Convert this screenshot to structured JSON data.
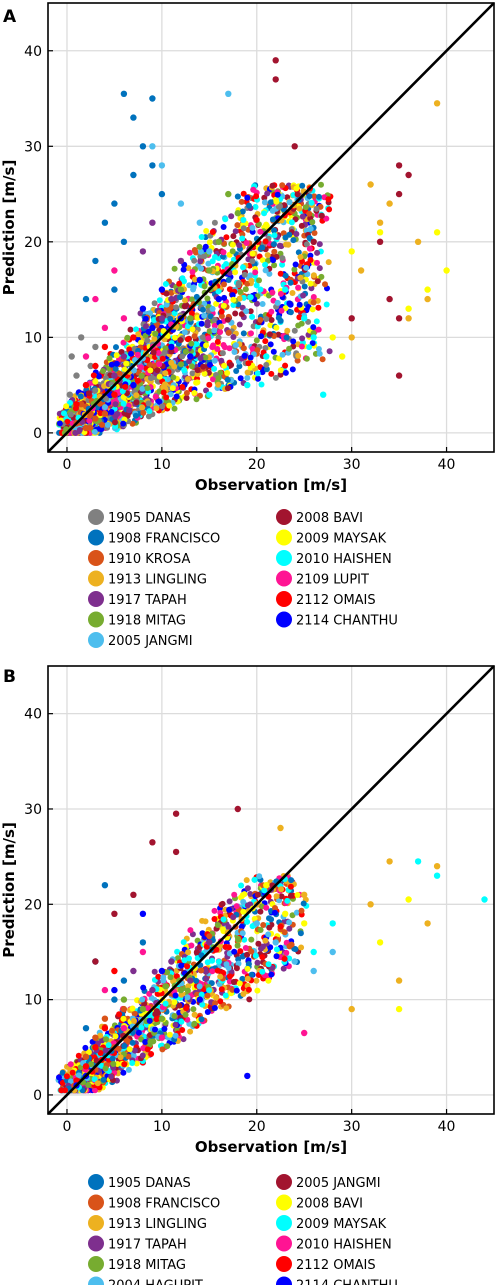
{
  "chart_data": [
    {
      "panel": "A",
      "type": "scatter",
      "xlabel": "Observation [m/s]",
      "ylabel": "Prediction [m/s]",
      "xlim": [
        -2,
        45
      ],
      "ylim": [
        -2,
        45
      ],
      "xticks": [
        "0",
        "10",
        "20",
        "30",
        "40"
      ],
      "yticks": [
        "0",
        "10",
        "20",
        "30",
        "40"
      ],
      "grid": true,
      "reference_line": "y = x",
      "legend_position": "below plot, two columns",
      "series": [
        {
          "name": "1905 DANAS",
          "color": "#808080",
          "points": [
            [
              0.5,
              8
            ],
            [
              1,
              6
            ],
            [
              1.5,
              10
            ],
            [
              2,
              5
            ],
            [
              0.3,
              4
            ],
            [
              3,
              9
            ],
            [
              2.5,
              7
            ]
          ]
        },
        {
          "name": "1908 FRANCISCO",
          "color": "#0072BD",
          "points": [
            [
              6,
              35.5
            ],
            [
              7,
              33
            ],
            [
              8,
              30
            ],
            [
              9,
              28
            ],
            [
              5,
              24
            ],
            [
              4,
              22
            ],
            [
              3,
              18
            ],
            [
              6,
              20
            ],
            [
              2,
              14
            ],
            [
              7,
              27
            ],
            [
              10,
              25
            ],
            [
              9,
              35
            ],
            [
              5,
              15
            ]
          ]
        },
        {
          "name": "1910 KROSA",
          "color": "#D95319",
          "points": [
            [
              1,
              1
            ],
            [
              2,
              0.5
            ],
            [
              3,
              1.5
            ],
            [
              4,
              2
            ],
            [
              1.5,
              3
            ],
            [
              2.5,
              2
            ]
          ]
        },
        {
          "name": "1913 LINGLING",
          "color": "#EDB120",
          "points": [
            [
              32,
              26
            ],
            [
              33,
              22
            ],
            [
              34,
              24
            ],
            [
              37,
              20
            ],
            [
              39,
              34.5
            ],
            [
              38,
              14
            ],
            [
              36,
              12
            ],
            [
              31,
              17
            ],
            [
              30,
              10
            ]
          ]
        },
        {
          "name": "1917 TAPAH",
          "color": "#7E2F8E",
          "points": [
            [
              8,
              19
            ],
            [
              9,
              22
            ],
            [
              10,
              12
            ],
            [
              11,
              14
            ],
            [
              6,
              8
            ],
            [
              5,
              6
            ],
            [
              12,
              18
            ]
          ]
        },
        {
          "name": "1918 MITAG",
          "color": "#77AC30",
          "points": [
            [
              17,
              25
            ],
            [
              16,
              20
            ],
            [
              18,
              23
            ],
            [
              15,
              17
            ],
            [
              13,
              12
            ],
            [
              12,
              15
            ]
          ]
        },
        {
          "name": "2005 JANGMI",
          "color": "#4DBEEE",
          "points": [
            [
              17,
              35.5
            ],
            [
              9,
              30
            ],
            [
              10,
              28
            ],
            [
              12,
              24
            ],
            [
              14,
              22
            ],
            [
              15,
              19
            ]
          ]
        },
        {
          "name": "2008 BAVI",
          "color": "#A2142F",
          "points": [
            [
              22,
              39
            ],
            [
              22,
              37
            ],
            [
              35,
              28
            ],
            [
              35,
              25
            ],
            [
              33,
              20
            ],
            [
              35,
              12
            ],
            [
              35,
              6
            ],
            [
              34,
              14
            ],
            [
              36,
              27
            ],
            [
              30,
              12
            ],
            [
              26,
              20
            ],
            [
              24,
              30
            ]
          ]
        },
        {
          "name": "2009 MAYSAK",
          "color": "#FFFF00",
          "points": [
            [
              40,
              17
            ],
            [
              39,
              21
            ],
            [
              38,
              15
            ],
            [
              36,
              13
            ],
            [
              33,
              21
            ],
            [
              30,
              19
            ],
            [
              28,
              10
            ],
            [
              29,
              8
            ]
          ]
        },
        {
          "name": "2010 HAISHEN",
          "color": "#00FFFF",
          "points": [
            [
              23,
              15
            ],
            [
              25,
              12
            ],
            [
              26,
              10
            ],
            [
              21,
              8
            ],
            [
              19,
              5
            ],
            [
              15,
              4
            ],
            [
              27,
              4
            ]
          ]
        },
        {
          "name": "2109 LUPIT",
          "color": "#FF1493",
          "points": [
            [
              3,
              14
            ],
            [
              4,
              11
            ],
            [
              5,
              17
            ],
            [
              2,
              8
            ],
            [
              6,
              12
            ]
          ]
        },
        {
          "name": "2112 OMAIS",
          "color": "#FF0000",
          "points": [
            [
              1,
              3
            ],
            [
              2,
              5
            ],
            [
              3,
              7
            ],
            [
              4,
              9
            ],
            [
              5,
              4
            ],
            [
              7,
              10
            ]
          ]
        },
        {
          "name": "2114 CHANTHU",
          "color": "#0000FF",
          "points": [
            [
              8,
              13
            ],
            [
              9,
              11
            ],
            [
              10,
              15
            ],
            [
              11,
              9
            ],
            [
              12,
              12
            ],
            [
              13,
              8
            ],
            [
              14,
              16
            ],
            [
              7,
              5
            ],
            [
              16,
              14
            ]
          ]
        }
      ]
    },
    {
      "panel": "B",
      "type": "scatter",
      "xlabel": "Observation [m/s]",
      "ylabel": "Prediction [m/s]",
      "xlim": [
        -2,
        45
      ],
      "ylim": [
        -2,
        45
      ],
      "xticks": [
        "0",
        "10",
        "20",
        "30",
        "40"
      ],
      "yticks": [
        "0",
        "10",
        "20",
        "30",
        "40"
      ],
      "grid": true,
      "reference_line": "y = x",
      "legend_position": "below plot, two columns",
      "series": [
        {
          "name": "1905 DANAS",
          "color": "#0072BD",
          "points": [
            [
              4,
              22
            ],
            [
              3,
              14
            ],
            [
              5,
              10
            ],
            [
              2,
              7
            ],
            [
              6,
              12
            ],
            [
              8,
              16
            ]
          ]
        },
        {
          "name": "1908 FRANCISCO",
          "color": "#D95319",
          "points": [
            [
              2,
              4
            ],
            [
              3,
              6
            ],
            [
              4,
              8
            ],
            [
              5,
              5
            ],
            [
              6,
              9
            ]
          ]
        },
        {
          "name": "1913 LINGLING",
          "color": "#EDB120",
          "points": [
            [
              22.5,
              28
            ],
            [
              30,
              9
            ],
            [
              32,
              20
            ],
            [
              34,
              24.5
            ],
            [
              35,
              12
            ],
            [
              38,
              18
            ],
            [
              39,
              24
            ],
            [
              20,
              20
            ],
            [
              25,
              21
            ]
          ]
        },
        {
          "name": "1917 TAPAH",
          "color": "#7E2F8E",
          "points": [
            [
              7,
              13
            ],
            [
              9,
              11
            ],
            [
              11,
              14
            ],
            [
              13,
              12
            ],
            [
              15,
              16
            ]
          ]
        },
        {
          "name": "1918 MITAG",
          "color": "#77AC30",
          "points": [
            [
              6,
              10
            ],
            [
              8,
              9
            ],
            [
              10,
              8
            ],
            [
              12,
              11
            ]
          ]
        },
        {
          "name": "2004 HAGUPIT",
          "color": "#4DBEEE",
          "points": [
            [
              20,
              18
            ],
            [
              22,
              16
            ],
            [
              24,
              14
            ],
            [
              26,
              13
            ],
            [
              28,
              15
            ]
          ]
        },
        {
          "name": "2005 JANGMI",
          "color": "#A2142F",
          "points": [
            [
              11.5,
              29.5
            ],
            [
              18,
              30
            ],
            [
              9,
              26.5
            ],
            [
              11.5,
              25.5
            ],
            [
              7,
              21
            ],
            [
              5,
              19
            ],
            [
              3,
              14
            ]
          ]
        },
        {
          "name": "2008 BAVI",
          "color": "#FFFF00",
          "points": [
            [
              21,
              22
            ],
            [
              23,
              19
            ],
            [
              25,
              18
            ],
            [
              35,
              9
            ],
            [
              36,
              20.5
            ],
            [
              33,
              16
            ]
          ]
        },
        {
          "name": "2009 MAYSAK",
          "color": "#00FFFF",
          "points": [
            [
              37,
              24.5
            ],
            [
              39,
              23
            ],
            [
              44,
              20.5
            ],
            [
              28,
              18
            ],
            [
              26,
              15
            ]
          ]
        },
        {
          "name": "2010 HAISHEN",
          "color": "#FF1493",
          "points": [
            [
              4,
              11
            ],
            [
              6,
              7
            ],
            [
              8,
              15
            ],
            [
              25,
              6.5
            ],
            [
              10,
              6
            ]
          ]
        },
        {
          "name": "2112 OMAIS",
          "color": "#FF0000",
          "points": [
            [
              1,
              1.5
            ],
            [
              2,
              3
            ],
            [
              3,
              5
            ],
            [
              4,
              7
            ],
            [
              5,
              13
            ]
          ]
        },
        {
          "name": "2114 CHANTHU",
          "color": "#0000FF",
          "points": [
            [
              1,
              1
            ],
            [
              2,
              2
            ],
            [
              5,
              11
            ],
            [
              8,
              19
            ],
            [
              10,
              13
            ],
            [
              19,
              2
            ],
            [
              14,
              10
            ]
          ]
        }
      ]
    }
  ]
}
